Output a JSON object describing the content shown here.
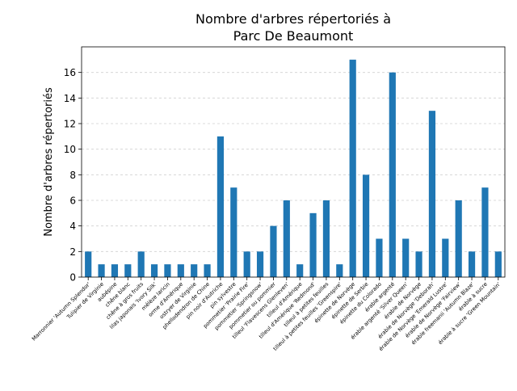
{
  "chart_data": {
    "type": "bar",
    "title": "Nombre d'arbres répertoriés à\nParc De Beaumont",
    "xlabel": "",
    "ylabel": "Nombre d'arbres répertoriés",
    "ylim": [
      0,
      18
    ],
    "yticks": [
      0,
      2,
      4,
      6,
      8,
      10,
      12,
      14,
      16
    ],
    "grid": "y-dashed",
    "bar_color": "#1f77b4",
    "categories": [
      "Marronnier 'Autumn Splendor'",
      "Tulipier de Virginie",
      "aubépine",
      "chêne blanc",
      "chêne à gros fruits",
      "lilas japonais 'Ivory Silk'",
      "mélèze laricin",
      "orme d'Amérique",
      "ostryer de Virginie",
      "phellodendron de Chine",
      "pin noir d'Autriche",
      "pin sylvestre",
      "pommetier 'Prairie Fire'",
      "pommetier 'Springsnow'",
      "pommetier ou pommier",
      "tilleul 'Flavescens Glenleven'",
      "tilleul d'Amérique",
      "tilleul d'Amérique 'Redmond'",
      "tilleul à petites feuilles",
      "tilleul à petites feuilles 'Greenspire'",
      "épinette de Norvège",
      "épinette de Serbie",
      "épinette du Colorado",
      "érable argenté",
      "érable argenté 'Silver Queen'",
      "érable de Norvège",
      "érable de Norvège 'Deborah'",
      "érable de Norvège 'Emerald Lustre'",
      "érable de Norvège 'Fairview'",
      "érable freemanii 'Autumn Blaze'",
      "érable à sucre",
      "érable à sucre 'Green Mountain'"
    ],
    "values": [
      2,
      1,
      1,
      1,
      2,
      1,
      1,
      1,
      1,
      1,
      11,
      7,
      2,
      2,
      4,
      6,
      1,
      5,
      6,
      1,
      17,
      8,
      3,
      16,
      3,
      2,
      13,
      3,
      6,
      2,
      7,
      2
    ]
  }
}
